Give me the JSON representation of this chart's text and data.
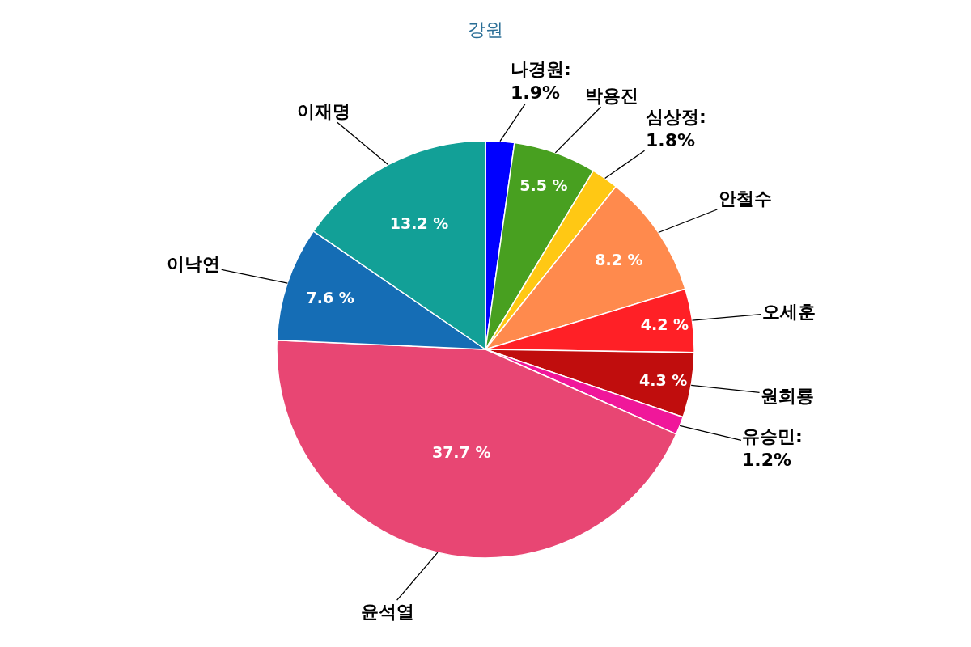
{
  "chart_data": {
    "type": "pie",
    "title": "강원",
    "categories": [
      "나경원",
      "박용진",
      "심상정",
      "안철수",
      "오세훈",
      "원희룡",
      "유승민",
      "윤석열",
      "이낙연",
      "이재명"
    ],
    "values": [
      1.9,
      5.5,
      1.8,
      8.2,
      4.2,
      4.3,
      1.2,
      37.7,
      7.6,
      13.2
    ],
    "value_labels": [
      ":\n1.9%",
      "5.5 %",
      ":\n1.8%",
      "8.2 %",
      "4.2 %",
      "4.3 %",
      ":\n1.2%",
      "37.7 %",
      "7.6 %",
      "13.2 %"
    ],
    "colors": [
      "#0000ff",
      "#48a020",
      "#ffc814",
      "#ff8a4d",
      "#ff2026",
      "#c00d0d",
      "#f0179a",
      "#e84673",
      "#156db5",
      "#12a097"
    ],
    "legend": false
  }
}
